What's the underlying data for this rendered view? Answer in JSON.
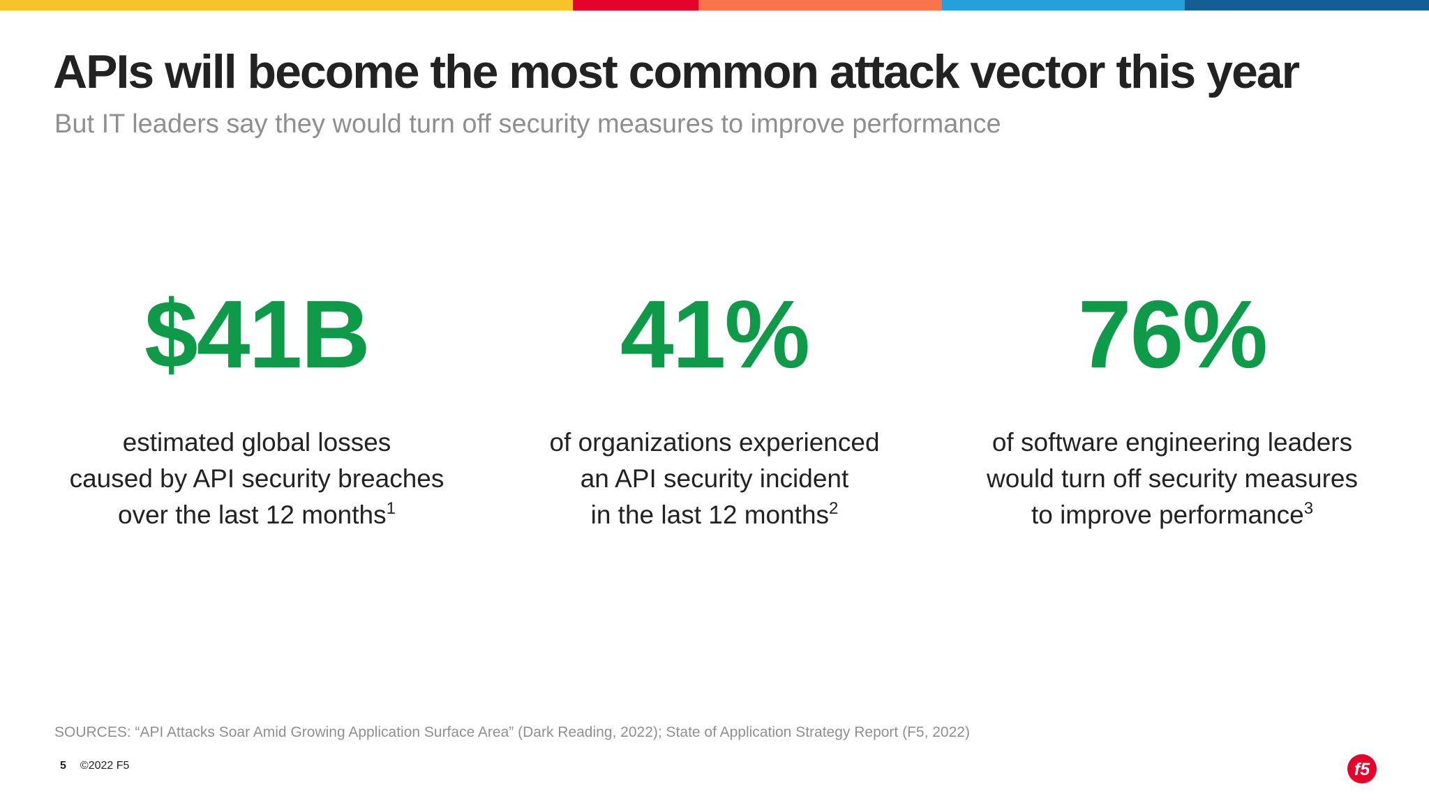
{
  "top_bar": {
    "colors": [
      "#f7c32a",
      "#e4032d",
      "#f9734b",
      "#26a0d9",
      "#135f95"
    ]
  },
  "slide": {
    "title": "APIs will become the most common attack vector this year",
    "subtitle": "But IT leaders say they would turn off security measures to improve performance",
    "accent_color": "#0e9a48",
    "stats": [
      {
        "value": "$41B",
        "lines": [
          "estimated global losses",
          "caused by API security breaches",
          "over the last 12 months"
        ],
        "footnote": "1"
      },
      {
        "value": "41%",
        "lines": [
          "of organizations experienced",
          "an API security incident",
          "in the last 12 months"
        ],
        "footnote": "2"
      },
      {
        "value": "76%",
        "lines": [
          "of software engineering leaders",
          "would turn off security measures",
          "to improve performance"
        ],
        "footnote": "3"
      }
    ],
    "sources": "SOURCES: “API Attacks Soar Amid Growing Application Surface Area” (Dark Reading, 2022); State of Application Strategy Report (F5, 2022)"
  },
  "footer": {
    "page_number": "5",
    "copyright": "©2022 F5",
    "logo_icon": "f5-logo-icon",
    "logo_text": "f5",
    "logo_color": "#e4032d"
  }
}
